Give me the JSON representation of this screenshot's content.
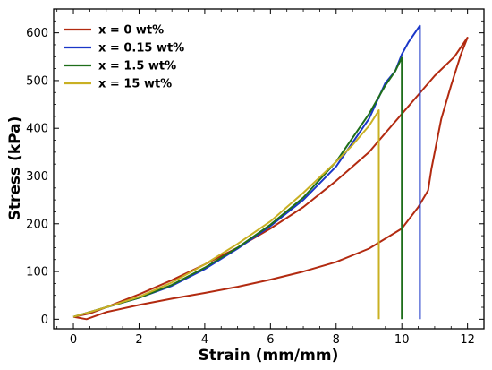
{
  "chart_data": {
    "type": "line",
    "xlabel": "Strain (mm/mm)",
    "ylabel": "Stress (kPa)",
    "xlim": [
      -0.6,
      12.5
    ],
    "ylim": [
      -20,
      650
    ],
    "xticks": [
      0,
      2,
      4,
      6,
      8,
      10,
      12
    ],
    "yticks": [
      0,
      100,
      200,
      300,
      400,
      500,
      600
    ],
    "xtick_labels": [
      "0",
      "2",
      "4",
      "6",
      "8",
      "10",
      "12"
    ],
    "ytick_labels": [
      "0",
      "100",
      "200",
      "300",
      "400",
      "500",
      "600"
    ],
    "grid": false,
    "legend_position": "top-left",
    "series": [
      {
        "name": "x = 0 wt%",
        "color": "#b22a10",
        "x": [
          0,
          0.4,
          1,
          2,
          3,
          4,
          5,
          6,
          7,
          8,
          9,
          10,
          10.5,
          10.8,
          10.9,
          11.2,
          11.5,
          11.8,
          12,
          11.6,
          11,
          10.5,
          10,
          9.5,
          9,
          8,
          7,
          6,
          5,
          4,
          3,
          2,
          1,
          0.5,
          0
        ],
        "y": [
          5,
          0,
          15,
          30,
          43,
          55,
          68,
          83,
          100,
          120,
          148,
          190,
          235,
          270,
          315,
          420,
          490,
          555,
          590,
          550,
          510,
          470,
          430,
          390,
          350,
          290,
          235,
          190,
          150,
          115,
          82,
          52,
          25,
          12,
          5
        ]
      },
      {
        "name": "x = 0.15 wt%",
        "color": "#1a36c8",
        "x": [
          0,
          1,
          2,
          3,
          4,
          5,
          6,
          7,
          8,
          9,
          9.5,
          9.8,
          10,
          10.2,
          10.4,
          10.55,
          10.55
        ],
        "y": [
          5,
          25,
          45,
          70,
          105,
          148,
          195,
          250,
          320,
          420,
          495,
          520,
          555,
          580,
          600,
          615,
          0
        ]
      },
      {
        "name": "x = 1.5 wt%",
        "color": "#1e6e1a",
        "x": [
          0,
          1,
          2,
          3,
          4,
          5,
          6,
          7,
          8,
          9,
          9.5,
          9.8,
          10,
          10,
          10
        ],
        "y": [
          5,
          25,
          45,
          72,
          108,
          150,
          198,
          255,
          330,
          430,
          490,
          520,
          548,
          540,
          0
        ]
      },
      {
        "name": "x = 15 wt%",
        "color": "#c9b023",
        "x": [
          0,
          1,
          2,
          3,
          4,
          5,
          6,
          7,
          8,
          8.5,
          9,
          9.25,
          9.3,
          9.3
        ],
        "y": [
          5,
          25,
          47,
          77,
          115,
          158,
          205,
          265,
          330,
          365,
          405,
          432,
          438,
          0
        ]
      }
    ]
  }
}
